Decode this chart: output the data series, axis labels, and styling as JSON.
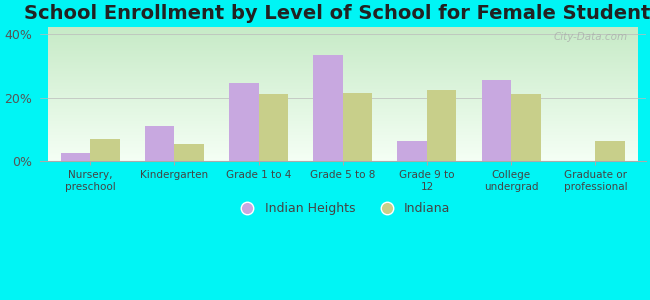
{
  "title": "School Enrollment by Level of School for Female Students",
  "categories": [
    "Nursery,\npreschool",
    "Kindergarten",
    "Grade 1 to 4",
    "Grade 5 to 8",
    "Grade 9 to\n12",
    "College\nundergrad",
    "Graduate or\nprofessional"
  ],
  "indian_heights": [
    2.5,
    11.0,
    24.5,
    33.5,
    6.5,
    25.5,
    0.0
  ],
  "indiana": [
    7.0,
    5.5,
    21.0,
    21.5,
    22.5,
    21.0,
    6.5
  ],
  "indian_heights_color": "#c8a8e0",
  "indiana_color": "#c8cf8a",
  "ylim": [
    0,
    42
  ],
  "yticks": [
    0,
    20,
    40
  ],
  "ytick_labels": [
    "0%",
    "20%",
    "40%"
  ],
  "legend_labels": [
    "Indian Heights",
    "Indiana"
  ],
  "background_color": "#00f5f5",
  "watermark": "City-Data.com",
  "bar_width": 0.35,
  "plot_bg_color": "#d8f0d8",
  "title_fontsize": 14
}
